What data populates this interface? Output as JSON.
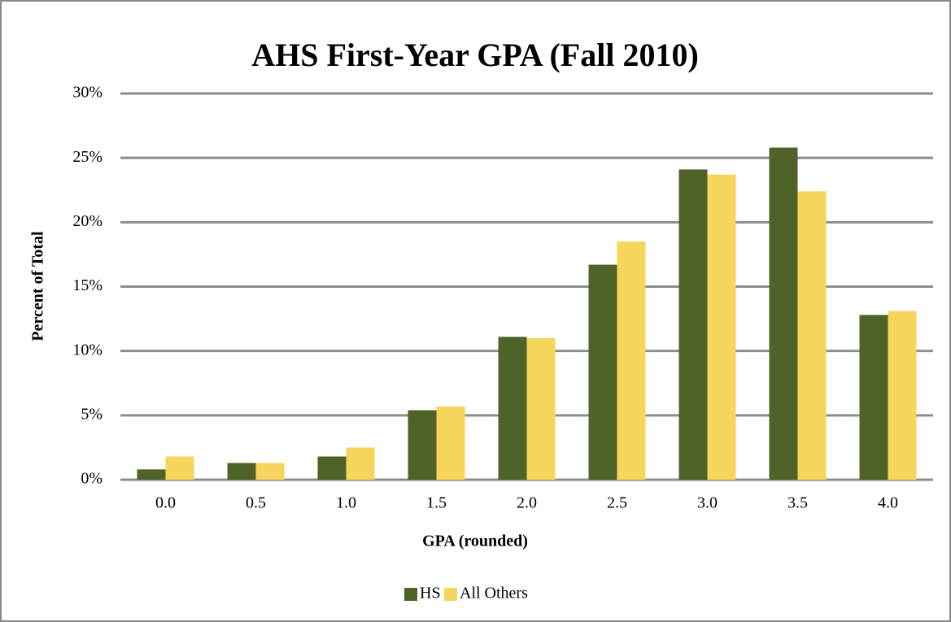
{
  "chart_data": {
    "type": "bar",
    "title": "AHS First-Year GPA (Fall 2010)",
    "x_label": "GPA (rounded)",
    "y_label": "Percent of Total",
    "categories": [
      "0.0",
      "0.5",
      "1.0",
      "1.5",
      "2.0",
      "2.5",
      "3.0",
      "3.5",
      "4.0"
    ],
    "series": [
      {
        "name": "HS",
        "color": "#4f6228",
        "values": [
          0.8,
          1.3,
          1.8,
          5.4,
          11.1,
          16.7,
          24.1,
          25.8,
          12.8
        ]
      },
      {
        "name": "All Others",
        "color": "#f5d55b",
        "values": [
          1.8,
          1.3,
          2.5,
          5.7,
          11.0,
          18.5,
          23.7,
          22.4,
          13.1
        ]
      }
    ],
    "ylim": [
      0,
      30
    ],
    "yticks": [
      {
        "value": 0,
        "label": "0%"
      },
      {
        "value": 5,
        "label": "5%"
      },
      {
        "value": 10,
        "label": "10%"
      },
      {
        "value": 15,
        "label": "15%"
      },
      {
        "value": 20,
        "label": "20%"
      },
      {
        "value": 25,
        "label": "25%"
      },
      {
        "value": 30,
        "label": "30%"
      }
    ],
    "grid": true,
    "legend": "bottom"
  }
}
